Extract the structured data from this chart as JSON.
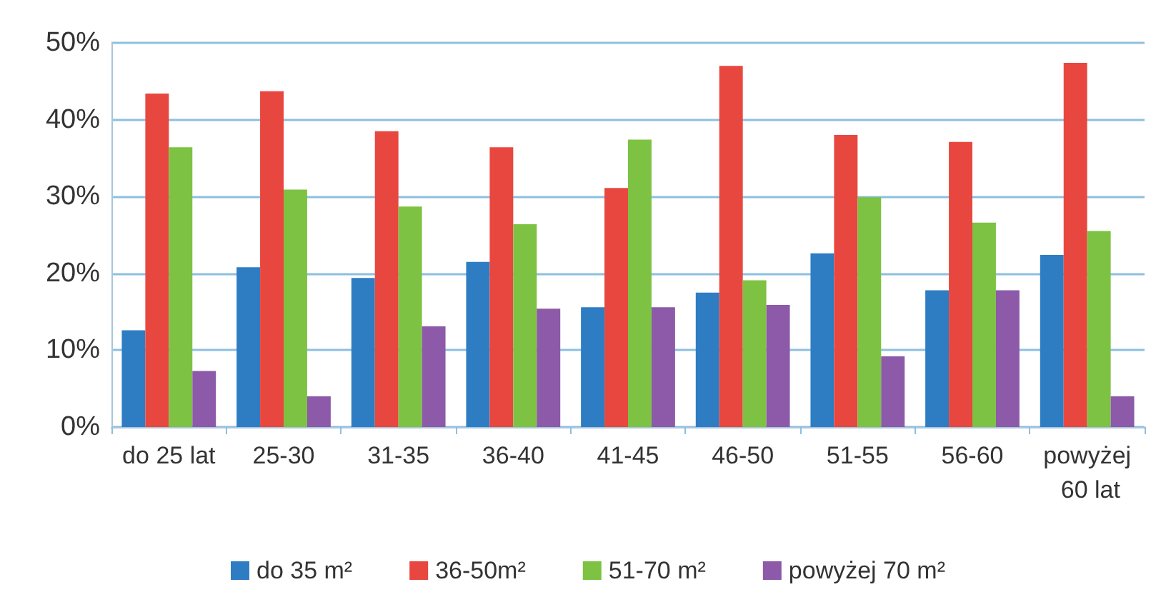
{
  "chart_data": {
    "type": "bar",
    "categories": [
      "do 25 lat",
      "25-30",
      "31-35",
      "36-40",
      "41-45",
      "46-50",
      "51-55",
      "56-60",
      "powyżej 60 lat"
    ],
    "series": [
      {
        "name": "do 35 m²",
        "color": "#2e7dc3",
        "values": [
          12.6,
          20.8,
          19.4,
          21.5,
          15.6,
          17.5,
          22.6,
          17.8,
          22.4
        ]
      },
      {
        "name": "36-50m²",
        "color": "#e8473f",
        "values": [
          43.4,
          43.7,
          38.5,
          36.4,
          31.1,
          47.0,
          38.0,
          37.1,
          47.4
        ]
      },
      {
        "name": "51-70 m²",
        "color": "#7dc242",
        "values": [
          36.4,
          30.9,
          28.7,
          26.4,
          37.4,
          19.1,
          29.9,
          26.6,
          25.5
        ]
      },
      {
        "name": "powyżej 70 m²",
        "color": "#8c5aa8",
        "values": [
          7.3,
          4.0,
          13.1,
          15.4,
          15.6,
          15.9,
          9.2,
          17.8,
          4.0
        ]
      }
    ],
    "ylim": [
      0,
      50
    ],
    "yticks": [
      {
        "value": 0,
        "label": "0%"
      },
      {
        "value": 10,
        "label": "10%"
      },
      {
        "value": 20,
        "label": "20%"
      },
      {
        "value": 30,
        "label": "30%"
      },
      {
        "value": 40,
        "label": "40%"
      },
      {
        "value": 50,
        "label": "50%"
      }
    ],
    "grid": "y",
    "legend": "bottom"
  }
}
